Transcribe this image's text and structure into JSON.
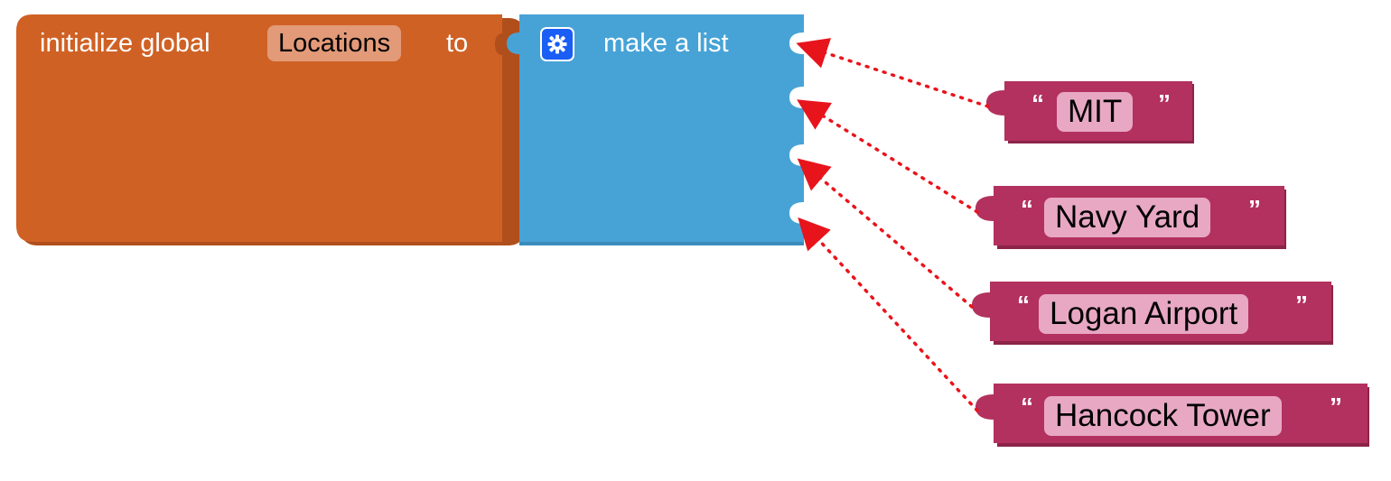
{
  "init_block": {
    "prefix": "initialize global",
    "variable": "Locations",
    "suffix": "to",
    "color": "#d06125",
    "field_color": "#e29a78"
  },
  "list_block": {
    "label": "make a list",
    "mutator_icon": "gear-icon",
    "color": "#47a3d6",
    "socket_count": 4
  },
  "strings": {
    "color": "#b3315e",
    "field_color": "#e8a8c4",
    "open_quote": "“",
    "close_quote": "”",
    "items": [
      {
        "text": "MIT"
      },
      {
        "text": "Navy Yard"
      },
      {
        "text": "Logan Airport"
      },
      {
        "text": "Hancock Tower"
      }
    ]
  },
  "arrows": {
    "color": "#e8141c",
    "style": "dotted"
  }
}
